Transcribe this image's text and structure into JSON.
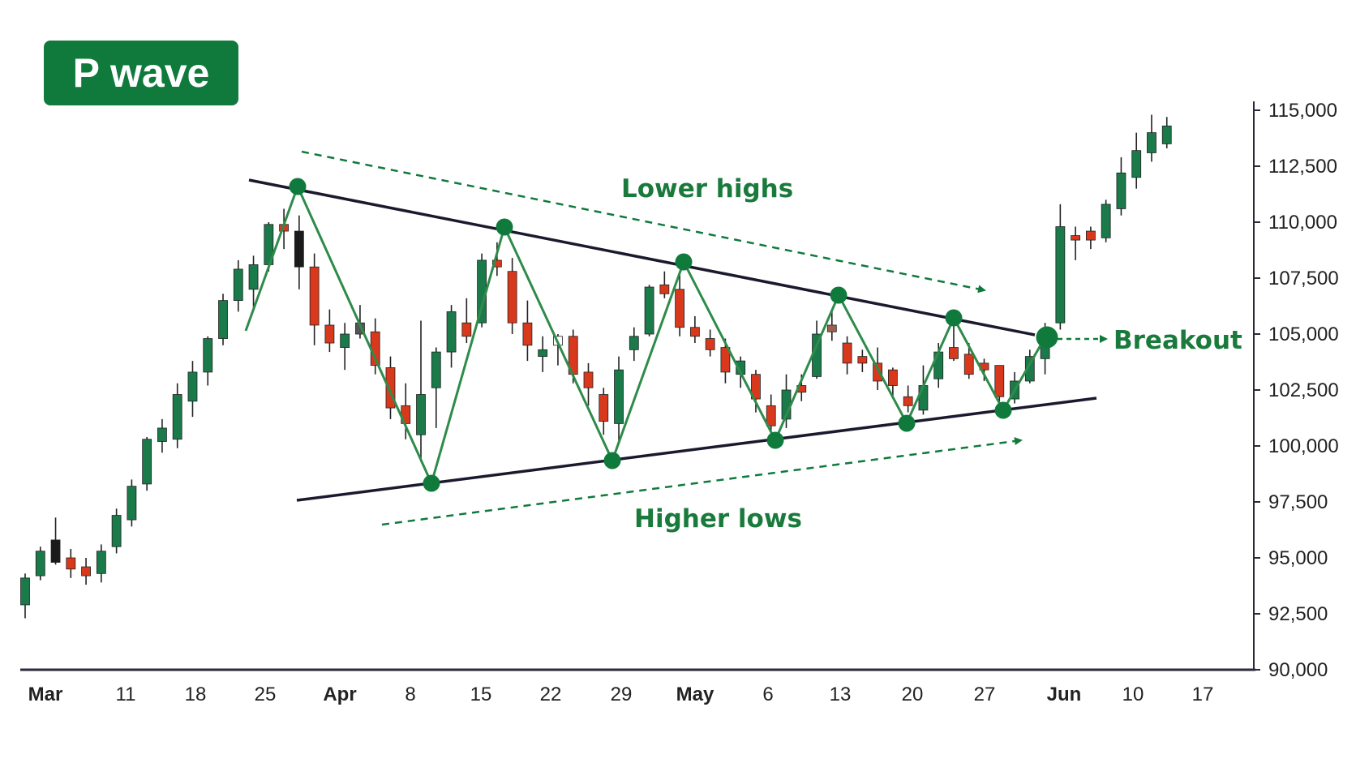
{
  "title": "P wave",
  "chart_data": {
    "type": "candlestick",
    "title": "P wave",
    "y_axis": {
      "min": 90000,
      "max": 115000,
      "ticks": [
        "115,000",
        "112,500",
        "110,000",
        "107,500",
        "105,000",
        "102,500",
        "100,000",
        "97,500",
        "95,000",
        "92,500",
        "90,000"
      ],
      "tick_values": [
        115000,
        112500,
        110000,
        107500,
        105000,
        102500,
        100000,
        97500,
        95000,
        92500,
        90000
      ]
    },
    "x_axis": {
      "ticks": [
        {
          "label": "Mar",
          "bold": true
        },
        {
          "label": "11",
          "bold": false
        },
        {
          "label": "18",
          "bold": false
        },
        {
          "label": "25",
          "bold": false
        },
        {
          "label": "Apr",
          "bold": true
        },
        {
          "label": "8",
          "bold": false
        },
        {
          "label": "15",
          "bold": false
        },
        {
          "label": "22",
          "bold": false
        },
        {
          "label": "29",
          "bold": false
        },
        {
          "label": "May",
          "bold": true
        },
        {
          "label": "6",
          "bold": false
        },
        {
          "label": "13",
          "bold": false
        },
        {
          "label": "20",
          "bold": false
        },
        {
          "label": "27",
          "bold": false
        },
        {
          "label": "Jun",
          "bold": true
        },
        {
          "label": "10",
          "bold": false
        },
        {
          "label": "17",
          "bold": false
        }
      ]
    },
    "annotations": {
      "lower_highs": "Lower highs",
      "higher_lows": "Higher lows",
      "breakout": "Breakout"
    },
    "colors": {
      "up": "#1a7a4a",
      "down": "#d8391c",
      "accent": "#107a3c",
      "line": "#1a1a2e"
    },
    "candles": [
      {
        "o": 92900,
        "h": 94300,
        "l": 92300,
        "c": 94100
      },
      {
        "o": 94200,
        "h": 95500,
        "l": 94000,
        "c": 95300
      },
      {
        "o": 95800,
        "h": 96800,
        "l": 94700,
        "c": 94800,
        "color": "#1a1a1a"
      },
      {
        "o": 95000,
        "h": 95400,
        "l": 94100,
        "c": 94500
      },
      {
        "o": 94600,
        "h": 95000,
        "l": 93800,
        "c": 94200
      },
      {
        "o": 94300,
        "h": 95600,
        "l": 93900,
        "c": 95300
      },
      {
        "o": 95500,
        "h": 97200,
        "l": 95200,
        "c": 96900
      },
      {
        "o": 96700,
        "h": 98500,
        "l": 96400,
        "c": 98200
      },
      {
        "o": 98300,
        "h": 100400,
        "l": 98000,
        "c": 100300
      },
      {
        "o": 100200,
        "h": 101200,
        "l": 99700,
        "c": 100800
      },
      {
        "o": 100300,
        "h": 102800,
        "l": 99900,
        "c": 102300
      },
      {
        "o": 102000,
        "h": 103800,
        "l": 101300,
        "c": 103300
      },
      {
        "o": 103300,
        "h": 104900,
        "l": 102700,
        "c": 104800
      },
      {
        "o": 104800,
        "h": 106800,
        "l": 104500,
        "c": 106500
      },
      {
        "o": 106500,
        "h": 108300,
        "l": 106000,
        "c": 107900
      },
      {
        "o": 107000,
        "h": 108500,
        "l": 106200,
        "c": 108100
      },
      {
        "o": 108100,
        "h": 110000,
        "l": 107800,
        "c": 109900
      },
      {
        "o": 109900,
        "h": 110600,
        "l": 108800,
        "c": 109600
      },
      {
        "o": 109600,
        "h": 110300,
        "l": 107000,
        "c": 108000,
        "color": "#1a1a1a"
      },
      {
        "o": 108000,
        "h": 108600,
        "l": 104500,
        "c": 105400
      },
      {
        "o": 105400,
        "h": 106100,
        "l": 104200,
        "c": 104600
      },
      {
        "o": 104400,
        "h": 105500,
        "l": 103400,
        "c": 105000
      },
      {
        "o": 105500,
        "h": 106300,
        "l": 104800,
        "c": 105000,
        "color": "#555555"
      },
      {
        "o": 105100,
        "h": 105700,
        "l": 103200,
        "c": 103600
      },
      {
        "o": 103500,
        "h": 104000,
        "l": 101200,
        "c": 101700
      },
      {
        "o": 101800,
        "h": 102800,
        "l": 100300,
        "c": 101000
      },
      {
        "o": 100500,
        "h": 105600,
        "l": 99300,
        "c": 102300
      },
      {
        "o": 102600,
        "h": 104400,
        "l": 100800,
        "c": 104200
      },
      {
        "o": 104200,
        "h": 106300,
        "l": 103500,
        "c": 106000
      },
      {
        "o": 105500,
        "h": 106600,
        "l": 104600,
        "c": 104900
      },
      {
        "o": 105500,
        "h": 108600,
        "l": 105300,
        "c": 108300
      },
      {
        "o": 108300,
        "h": 109100,
        "l": 107600,
        "c": 108000
      },
      {
        "o": 107800,
        "h": 108400,
        "l": 105000,
        "c": 105500
      },
      {
        "o": 105500,
        "h": 106500,
        "l": 103800,
        "c": 104500
      },
      {
        "o": 104000,
        "h": 104900,
        "l": 103300,
        "c": 104300
      },
      {
        "o": 104500,
        "h": 105000,
        "l": 103600,
        "c": 104900,
        "color": "#ffffff"
      },
      {
        "o": 104900,
        "h": 105200,
        "l": 102800,
        "c": 103200
      },
      {
        "o": 103300,
        "h": 103700,
        "l": 101800,
        "c": 102600
      },
      {
        "o": 102300,
        "h": 102600,
        "l": 100500,
        "c": 101100
      },
      {
        "o": 101000,
        "h": 104000,
        "l": 100100,
        "c": 103400
      },
      {
        "o": 104300,
        "h": 105300,
        "l": 103800,
        "c": 104900
      },
      {
        "o": 105000,
        "h": 107200,
        "l": 104900,
        "c": 107100
      },
      {
        "o": 107200,
        "h": 107800,
        "l": 106600,
        "c": 106800
      },
      {
        "o": 107000,
        "h": 107800,
        "l": 104900,
        "c": 105300
      },
      {
        "o": 105300,
        "h": 105800,
        "l": 104600,
        "c": 104900
      },
      {
        "o": 104800,
        "h": 105200,
        "l": 104000,
        "c": 104300
      },
      {
        "o": 104400,
        "h": 104800,
        "l": 102800,
        "c": 103300
      },
      {
        "o": 103200,
        "h": 104000,
        "l": 102600,
        "c": 103800
      },
      {
        "o": 103200,
        "h": 103400,
        "l": 101500,
        "c": 102100
      },
      {
        "o": 101800,
        "h": 102300,
        "l": 100500,
        "c": 100900
      },
      {
        "o": 101200,
        "h": 103200,
        "l": 100800,
        "c": 102500
      },
      {
        "o": 102700,
        "h": 103200,
        "l": 102000,
        "c": 102400
      },
      {
        "o": 103100,
        "h": 105600,
        "l": 103000,
        "c": 105000
      },
      {
        "o": 105400,
        "h": 106000,
        "l": 104700,
        "c": 105100,
        "color": "#a06050"
      },
      {
        "o": 104600,
        "h": 104900,
        "l": 103200,
        "c": 103700
      },
      {
        "o": 104000,
        "h": 104300,
        "l": 103300,
        "c": 103700
      },
      {
        "o": 103700,
        "h": 104400,
        "l": 102500,
        "c": 102900
      },
      {
        "o": 103400,
        "h": 103500,
        "l": 102200,
        "c": 102700
      },
      {
        "o": 102200,
        "h": 102700,
        "l": 101500,
        "c": 101800
      },
      {
        "o": 101600,
        "h": 103600,
        "l": 101400,
        "c": 102700
      },
      {
        "o": 103000,
        "h": 104600,
        "l": 102600,
        "c": 104200
      },
      {
        "o": 104400,
        "h": 105700,
        "l": 103800,
        "c": 103900
      },
      {
        "o": 104100,
        "h": 104600,
        "l": 103000,
        "c": 103200
      },
      {
        "o": 103700,
        "h": 103900,
        "l": 102900,
        "c": 103400
      },
      {
        "o": 103600,
        "h": 103600,
        "l": 101700,
        "c": 102200
      },
      {
        "o": 102100,
        "h": 103300,
        "l": 101900,
        "c": 102900
      },
      {
        "o": 102900,
        "h": 104300,
        "l": 102800,
        "c": 104000
      },
      {
        "o": 103900,
        "h": 105500,
        "l": 103200,
        "c": 104500
      },
      {
        "o": 105500,
        "h": 110800,
        "l": 105200,
        "c": 109800
      },
      {
        "o": 109400,
        "h": 109800,
        "l": 108300,
        "c": 109200
      },
      {
        "o": 109600,
        "h": 109800,
        "l": 108800,
        "c": 109200
      },
      {
        "o": 109300,
        "h": 111000,
        "l": 109100,
        "c": 110800
      },
      {
        "o": 110600,
        "h": 112900,
        "l": 110300,
        "c": 112200
      },
      {
        "o": 112000,
        "h": 114000,
        "l": 111500,
        "c": 113200
      },
      {
        "o": 113100,
        "h": 114800,
        "l": 112700,
        "c": 114000
      },
      {
        "o": 113500,
        "h": 114700,
        "l": 113300,
        "c": 114300
      }
    ]
  }
}
